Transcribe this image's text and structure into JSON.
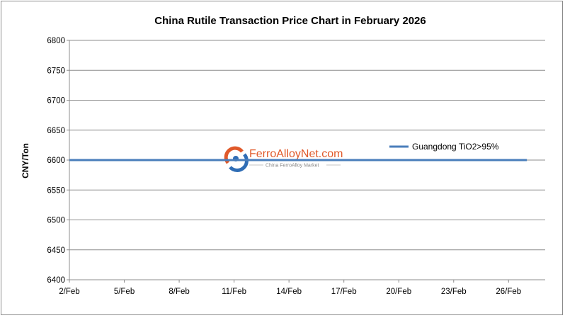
{
  "chart_data": {
    "type": "line",
    "title": "China Rutile Transaction Price Chart in February 2026",
    "xlabel": "",
    "ylabel": "CNY/Ton",
    "x_ticks": [
      "2/Feb",
      "5/Feb",
      "8/Feb",
      "11/Feb",
      "14/Feb",
      "17/Feb",
      "20/Feb",
      "23/Feb",
      "26/Feb"
    ],
    "x_start_day": 2,
    "x_end_day": 28,
    "ylim": [
      6400,
      6800
    ],
    "y_ticks": [
      6400,
      6450,
      6500,
      6550,
      6600,
      6650,
      6700,
      6750,
      6800
    ],
    "grid": "horizontal",
    "legend_position": "right",
    "series": [
      {
        "name": "Guangdong TiO2>95%",
        "color": "#4a7ebb",
        "points": [
          {
            "x": "2/Feb",
            "y": 6600
          },
          {
            "x": "27/Feb",
            "y": 6600
          }
        ]
      }
    ]
  },
  "watermark": {
    "main_text": "FerroAlloyNet.com",
    "sub_text": "China FerroAlloy Market",
    "logo": "ferroalloynet-logo-icon"
  }
}
